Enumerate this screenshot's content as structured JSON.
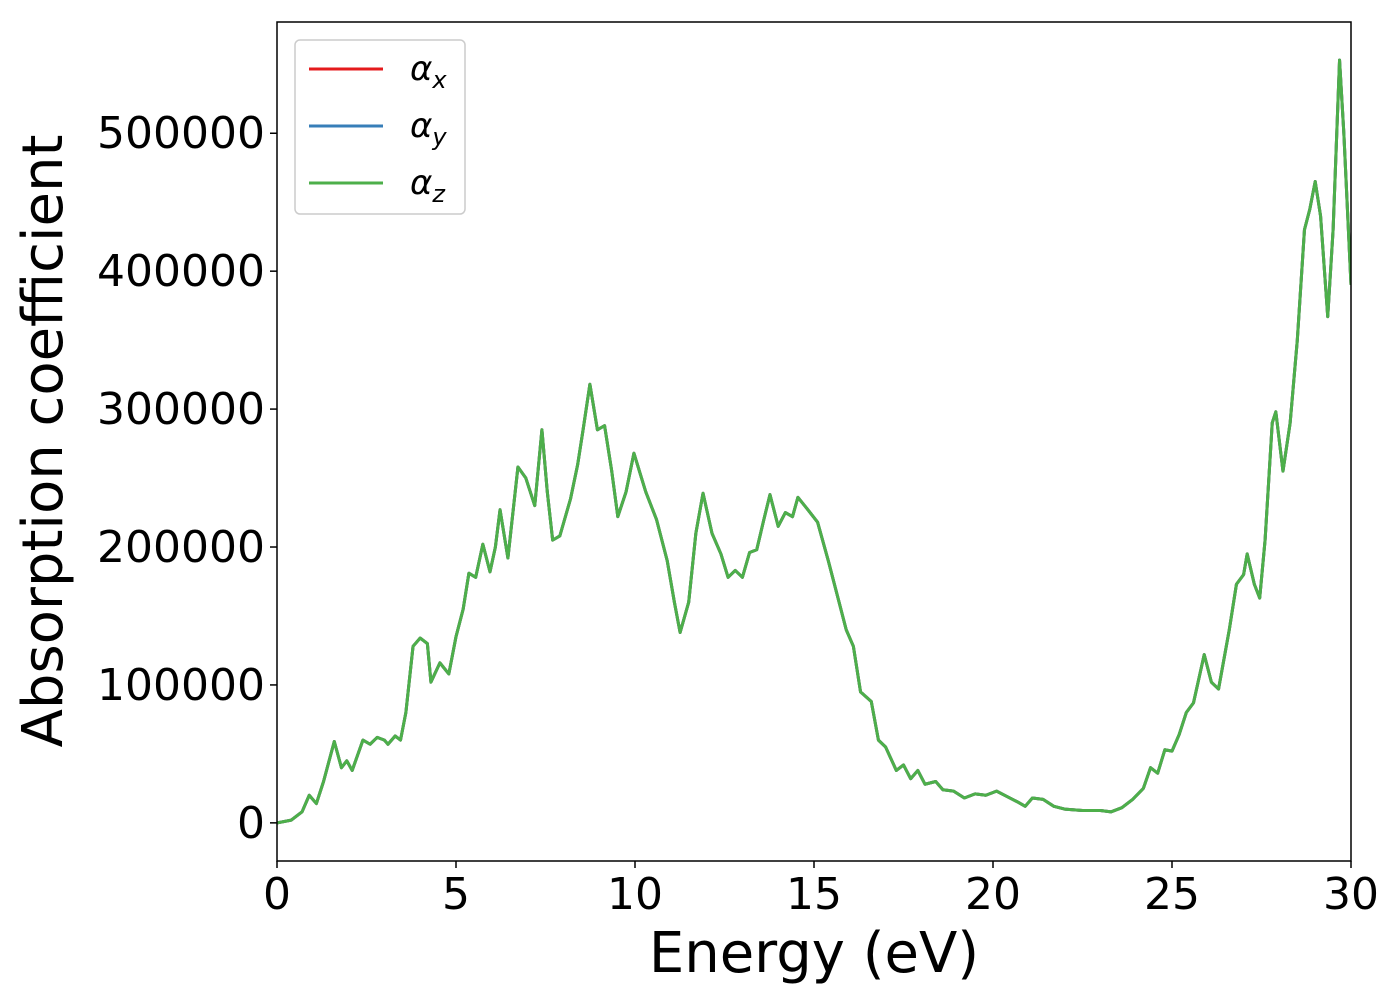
{
  "chart_data": {
    "type": "line",
    "xlabel": "Energy (eV)",
    "ylabel": "Absorption coefficient",
    "xlim": [
      0,
      30
    ],
    "xticks": [
      0,
      5,
      10,
      15,
      20,
      25,
      30
    ],
    "ylim": [
      -27650,
      580650
    ],
    "yticks": [
      0,
      100000,
      200000,
      300000,
      400000,
      500000
    ],
    "legend": "upper left",
    "grid": false,
    "x": [
      0,
      0.4,
      0.7,
      0.9,
      1.1,
      1.3,
      1.6,
      1.8,
      1.95,
      2.1,
      2.4,
      2.6,
      2.8,
      3.0,
      3.1,
      3.3,
      3.45,
      3.6,
      3.8,
      4.0,
      4.2,
      4.3,
      4.55,
      4.8,
      5.0,
      5.2,
      5.36,
      5.55,
      5.75,
      5.95,
      6.1,
      6.23,
      6.45,
      6.73,
      6.95,
      7.2,
      7.4,
      7.55,
      7.7,
      7.9,
      8.2,
      8.4,
      8.55,
      8.74,
      8.95,
      9.15,
      9.35,
      9.52,
      9.75,
      9.97,
      10.3,
      10.6,
      10.9,
      11.1,
      11.26,
      11.5,
      11.7,
      11.9,
      12.15,
      12.4,
      12.6,
      12.8,
      13.0,
      13.2,
      13.4,
      13.6,
      13.77,
      14.0,
      14.2,
      14.4,
      14.55,
      14.8,
      15.1,
      15.4,
      15.7,
      15.9,
      16.1,
      16.3,
      16.6,
      16.8,
      17.0,
      17.3,
      17.5,
      17.7,
      17.9,
      18.1,
      18.4,
      18.6,
      18.9,
      19.2,
      19.5,
      19.8,
      20.1,
      20.4,
      20.7,
      20.9,
      21.1,
      21.4,
      21.7,
      22.0,
      22.5,
      23.0,
      23.3,
      23.6,
      23.9,
      24.2,
      24.4,
      24.6,
      24.8,
      25.0,
      25.2,
      25.4,
      25.6,
      25.9,
      26.1,
      26.3,
      26.6,
      26.8,
      27.0,
      27.1,
      27.3,
      27.45,
      27.6,
      27.8,
      27.9,
      28.1,
      28.3,
      28.5,
      28.7,
      28.85,
      29.0,
      29.15,
      29.35,
      29.5,
      29.68,
      29.8,
      30.0
    ],
    "series": [
      {
        "name": "αx",
        "color": "#e41a1c",
        "values": [
          0,
          2000,
          8000,
          20000,
          14000,
          30000,
          59000,
          40000,
          45000,
          38000,
          60000,
          57000,
          62000,
          60000,
          57000,
          63000,
          60000,
          80000,
          128000,
          134000,
          130000,
          102000,
          116000,
          108000,
          135000,
          155000,
          181000,
          178000,
          202000,
          182000,
          200000,
          227000,
          192000,
          258000,
          250000,
          230000,
          285000,
          240000,
          205000,
          208000,
          235000,
          260000,
          285000,
          318000,
          285000,
          288000,
          255000,
          222000,
          240000,
          268000,
          240000,
          220000,
          190000,
          160000,
          138000,
          160000,
          210000,
          239000,
          210000,
          195000,
          178000,
          183000,
          178000,
          196000,
          198000,
          220000,
          238000,
          215000,
          225000,
          222000,
          236000,
          228000,
          218000,
          190000,
          160000,
          140000,
          128000,
          95000,
          88000,
          60000,
          55000,
          38000,
          42000,
          32000,
          38000,
          28000,
          30000,
          24000,
          23000,
          18000,
          21000,
          20000,
          23000,
          19000,
          15000,
          12000,
          18000,
          17000,
          12000,
          10000,
          9000,
          9000,
          8000,
          11000,
          17000,
          25000,
          40000,
          36000,
          53000,
          52000,
          64000,
          80000,
          87000,
          122000,
          102000,
          97000,
          140000,
          173000,
          180000,
          195000,
          173000,
          163000,
          205000,
          290000,
          298000,
          255000,
          290000,
          350000,
          430000,
          445000,
          465000,
          440000,
          367000,
          430000,
          553000,
          500000,
          390000
        ]
      },
      {
        "name": "αy",
        "color": "#377eb8",
        "values": [
          0,
          2000,
          8000,
          20000,
          14000,
          30000,
          59000,
          40000,
          45000,
          38000,
          60000,
          57000,
          62000,
          60000,
          57000,
          63000,
          60000,
          80000,
          128000,
          134000,
          130000,
          102000,
          116000,
          108000,
          135000,
          155000,
          181000,
          178000,
          202000,
          182000,
          200000,
          227000,
          192000,
          258000,
          250000,
          230000,
          285000,
          240000,
          205000,
          208000,
          235000,
          260000,
          285000,
          318000,
          285000,
          288000,
          255000,
          222000,
          240000,
          268000,
          240000,
          220000,
          190000,
          160000,
          138000,
          160000,
          210000,
          239000,
          210000,
          195000,
          178000,
          183000,
          178000,
          196000,
          198000,
          220000,
          238000,
          215000,
          225000,
          222000,
          236000,
          228000,
          218000,
          190000,
          160000,
          140000,
          128000,
          95000,
          88000,
          60000,
          55000,
          38000,
          42000,
          32000,
          38000,
          28000,
          30000,
          24000,
          23000,
          18000,
          21000,
          20000,
          23000,
          19000,
          15000,
          12000,
          18000,
          17000,
          12000,
          10000,
          9000,
          9000,
          8000,
          11000,
          17000,
          25000,
          40000,
          36000,
          53000,
          52000,
          64000,
          80000,
          87000,
          122000,
          102000,
          97000,
          140000,
          173000,
          180000,
          195000,
          173000,
          163000,
          205000,
          290000,
          298000,
          255000,
          290000,
          350000,
          430000,
          445000,
          465000,
          440000,
          367000,
          430000,
          553000,
          500000,
          390000
        ]
      },
      {
        "name": "αz",
        "color": "#4daf4a",
        "values": [
          0,
          2000,
          8000,
          20000,
          14000,
          30000,
          59000,
          40000,
          45000,
          38000,
          60000,
          57000,
          62000,
          60000,
          57000,
          63000,
          60000,
          80000,
          128000,
          134000,
          130000,
          102000,
          116000,
          108000,
          135000,
          155000,
          181000,
          178000,
          202000,
          182000,
          200000,
          227000,
          192000,
          258000,
          250000,
          230000,
          285000,
          240000,
          205000,
          208000,
          235000,
          260000,
          285000,
          318000,
          285000,
          288000,
          255000,
          222000,
          240000,
          268000,
          240000,
          220000,
          190000,
          160000,
          138000,
          160000,
          210000,
          239000,
          210000,
          195000,
          178000,
          183000,
          178000,
          196000,
          198000,
          220000,
          238000,
          215000,
          225000,
          222000,
          236000,
          228000,
          218000,
          190000,
          160000,
          140000,
          128000,
          95000,
          88000,
          60000,
          55000,
          38000,
          42000,
          32000,
          38000,
          28000,
          30000,
          24000,
          23000,
          18000,
          21000,
          20000,
          23000,
          19000,
          15000,
          12000,
          18000,
          17000,
          12000,
          10000,
          9000,
          9000,
          8000,
          11000,
          17000,
          25000,
          40000,
          36000,
          53000,
          52000,
          64000,
          80000,
          87000,
          122000,
          102000,
          97000,
          140000,
          173000,
          180000,
          195000,
          173000,
          163000,
          205000,
          290000,
          298000,
          255000,
          290000,
          350000,
          430000,
          445000,
          465000,
          440000,
          367000,
          430000,
          553000,
          500000,
          390000
        ]
      }
    ]
  }
}
